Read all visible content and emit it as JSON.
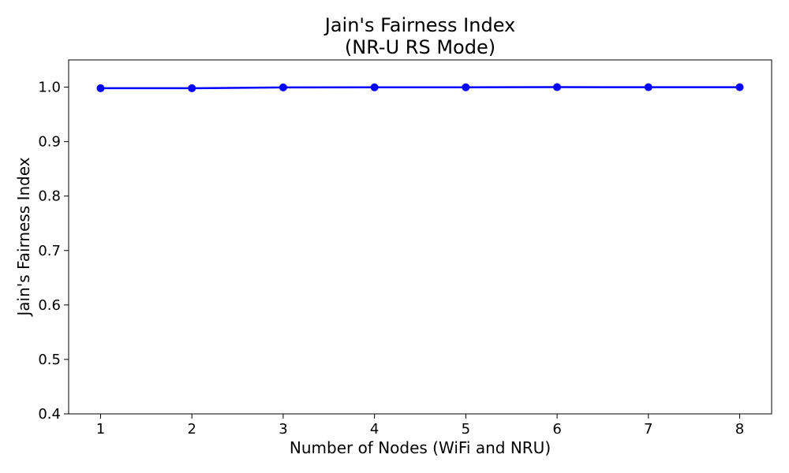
{
  "chart_data": {
    "type": "line",
    "title": [
      "Jain's Fairness Index",
      "(NR-U RS Mode)"
    ],
    "xlabel": "Number of Nodes (WiFi and NRU)",
    "ylabel": "Jain's Fairness Index",
    "x": [
      1,
      2,
      3,
      4,
      5,
      6,
      7,
      8
    ],
    "x_tick_labels": [
      "1",
      "2",
      "3",
      "4",
      "5",
      "6",
      "7",
      "8"
    ],
    "y_ticks": [
      0.4,
      0.5,
      0.6,
      0.7,
      0.8,
      0.9,
      1.0
    ],
    "y_tick_labels": [
      "0.4",
      "0.5",
      "0.6",
      "0.7",
      "0.8",
      "0.9",
      "1.0"
    ],
    "xlim": [
      0.65,
      8.35
    ],
    "ylim": [
      0.4,
      1.05
    ],
    "series": [
      {
        "values": [
          0.998,
          0.998,
          0.9995,
          0.9997,
          0.9997,
          1.0,
          0.9999,
          0.9999
        ],
        "color": "#0000ff",
        "marker": "circle"
      }
    ],
    "grid": false,
    "legend": "none"
  }
}
